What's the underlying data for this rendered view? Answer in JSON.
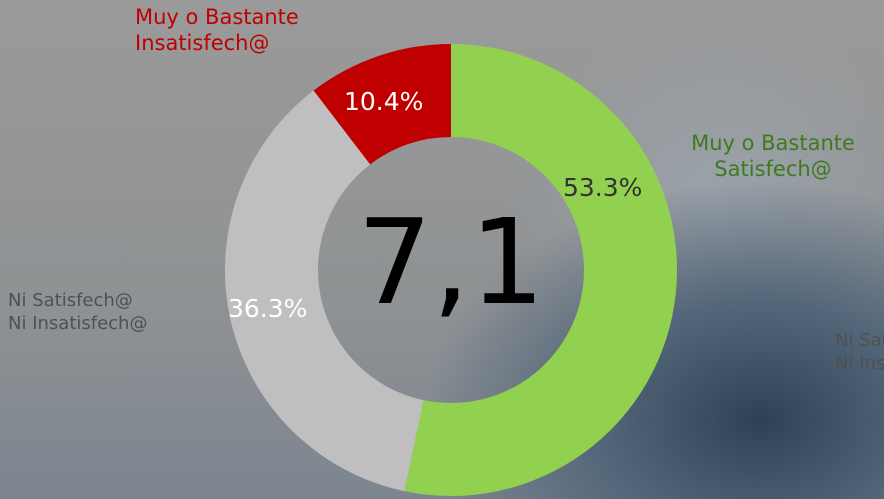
{
  "chart_data": {
    "type": "donut",
    "categories": [
      "Muy o Bastante\nSatisfech@",
      "Ni Satisfech@\nNi Insatisfech@",
      "Muy o Bastante\nInsatisfech@"
    ],
    "values": [
      53.3,
      36.3,
      10.4
    ],
    "value_labels": [
      "53.3%",
      "36.3%",
      "10.4%"
    ],
    "colors": [
      "#92d050",
      "#bfbfbf",
      "#c00000"
    ],
    "center_label": "7,1"
  }
}
